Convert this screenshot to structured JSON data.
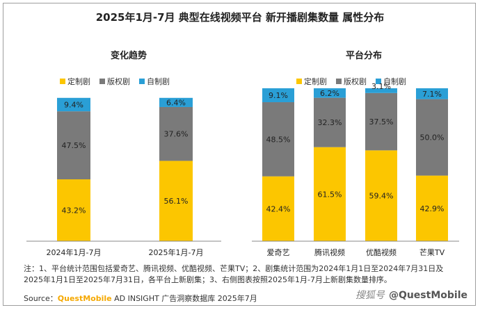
{
  "title": "2025年1月-7月 典型在线视频平台 新开播剧集数量 属性分布",
  "colors": {
    "定制剧": "#fcc600",
    "版权剧": "#7a7a7a",
    "自制剧": "#2a9fd6"
  },
  "chart_data": [
    {
      "type": "bar",
      "stacked": true,
      "percent": true,
      "title": "变化趋势",
      "categories": [
        "2024年1月-7月",
        "2025年1月-7月"
      ],
      "series": [
        {
          "name": "定制剧",
          "values": [
            43.2,
            56.1
          ]
        },
        {
          "name": "版权剧",
          "values": [
            47.5,
            37.6
          ]
        },
        {
          "name": "自制剧",
          "values": [
            9.4,
            6.4
          ]
        }
      ],
      "value_labels": [
        [
          "43.2%",
          "56.1%"
        ],
        [
          "47.5%",
          "37.6%"
        ],
        [
          "9.4%",
          "6.4%"
        ]
      ],
      "ylim": [
        0,
        100
      ],
      "legend": "top"
    },
    {
      "type": "bar",
      "stacked": true,
      "percent": true,
      "title": "平台分布",
      "categories": [
        "爱奇艺",
        "腾讯视频",
        "优酷视频",
        "芒果TV"
      ],
      "series": [
        {
          "name": "定制剧",
          "values": [
            42.4,
            61.5,
            59.4,
            42.9
          ]
        },
        {
          "name": "版权剧",
          "values": [
            48.5,
            32.3,
            37.5,
            50.0
          ]
        },
        {
          "name": "自制剧",
          "values": [
            9.1,
            6.2,
            3.1,
            7.1
          ]
        }
      ],
      "value_labels": [
        [
          "42.4%",
          "61.5%",
          "59.4%",
          "42.9%"
        ],
        [
          "48.5%",
          "32.3%",
          "37.5%",
          "50.0%"
        ],
        [
          "9.1%",
          "6.2%",
          "3.1%",
          "7.1%"
        ]
      ],
      "ylim": [
        0,
        100
      ],
      "legend": "top"
    }
  ],
  "notes": {
    "line1": "注：1、平台统计范围包括爱奇艺、腾讯视频、优酷视频、芒果TV；2、剧集统计范围为2024年1月1日至2024年7月31日及",
    "line2": "2025年1月1日至2025年7月31日，各平台上新剧集；3、右侧图表按照2025年1月-7月上新剧集数量排序。"
  },
  "source": {
    "prefix": "Source：",
    "brand": "QuestMobile",
    "suffix": " AD INSIGHT 广告洞察数据库 2025年7月"
  },
  "watermark": {
    "pre": "搜狐号",
    "text": "@QuestMobile"
  }
}
